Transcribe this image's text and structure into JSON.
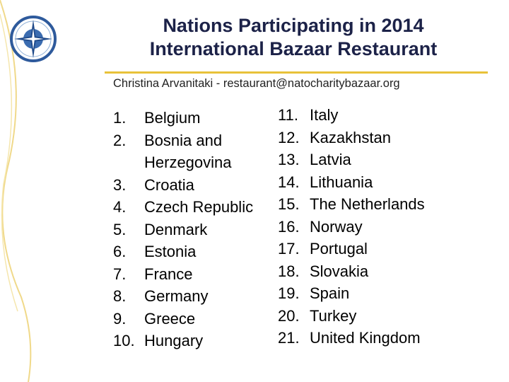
{
  "title": {
    "line1": "Nations Participating in 2014",
    "line2": "International Bazaar Restaurant"
  },
  "subtitle": "Christina Arvanitaki - restaurant@natocharitybazaar.org",
  "colors": {
    "title": "#1c2248",
    "accent_gold": "#e8c23a",
    "logo_blue": "#2e5a9c"
  },
  "logo_icon": "nato-compass-rose-icon",
  "nations_left": [
    {
      "num": "1.",
      "name": "Belgium"
    },
    {
      "num": "2.",
      "name": "Bosnia and",
      "cont": "Herzegovina"
    },
    {
      "num": "3.",
      "name": "Croatia"
    },
    {
      "num": "4.",
      "name": "Czech Republic"
    },
    {
      "num": "5.",
      "name": "Denmark"
    },
    {
      "num": "6.",
      "name": "Estonia"
    },
    {
      "num": "7.",
      "name": "France"
    },
    {
      "num": "8.",
      "name": "Germany"
    },
    {
      "num": "9.",
      "name": "Greece"
    },
    {
      "num": "10.",
      "name": "Hungary"
    }
  ],
  "nations_right": [
    {
      "num": "11.",
      "name": "Italy"
    },
    {
      "num": "12.",
      "name": "Kazakhstan"
    },
    {
      "num": "13.",
      "name": "Latvia"
    },
    {
      "num": "14.",
      "name": "Lithuania"
    },
    {
      "num": "15.",
      "name": "The Netherlands"
    },
    {
      "num": "16.",
      "name": "Norway"
    },
    {
      "num": "17.",
      "name": "Portugal"
    },
    {
      "num": "18.",
      "name": "Slovakia"
    },
    {
      "num": "19.",
      "name": "Spain"
    },
    {
      "num": "20.",
      "name": "Turkey"
    },
    {
      "num": "21.",
      "name": "United Kingdom"
    }
  ]
}
